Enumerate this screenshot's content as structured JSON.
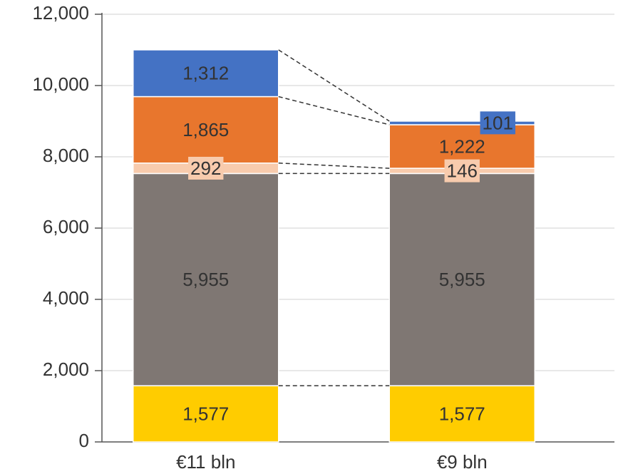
{
  "chart_data": {
    "type": "stacked_bar",
    "categories": [
      "€11 bln",
      "€9 bln"
    ],
    "series": [
      {
        "color": "#ffcc00",
        "label_color": "#333333",
        "values": [
          1577,
          1577
        ],
        "value_labels": [
          "1,577",
          "1,577"
        ]
      },
      {
        "color": "#7f7773",
        "label_color": "#ffffff",
        "values": [
          5955,
          5955
        ],
        "value_labels": [
          "5,955",
          "5,955"
        ]
      },
      {
        "color": "#f8cbad",
        "label_color": "#333333",
        "values": [
          292,
          146
        ],
        "value_labels": [
          "292",
          "146"
        ]
      },
      {
        "color": "#e8762d",
        "label_color": "#ffffff",
        "values": [
          1865,
          1222
        ],
        "value_labels": [
          "1,865",
          "1,222"
        ]
      },
      {
        "color": "#4472c4",
        "label_color": "#ffffff",
        "values": [
          1312,
          101
        ],
        "value_labels": [
          "1,312",
          "101"
        ]
      }
    ],
    "ylim": [
      0,
      12000
    ],
    "yticks": [
      0,
      {
        "value": 2000,
        "label": "2,000"
      },
      {
        "value": 4000,
        "label": "4,000"
      },
      {
        "value": 6000,
        "label": "6,000"
      },
      {
        "value": 8000,
        "label": "8,000"
      },
      {
        "value": 10000,
        "label": "10,000"
      },
      {
        "value": 12000,
        "label": "12,000"
      }
    ],
    "grid": true
  }
}
